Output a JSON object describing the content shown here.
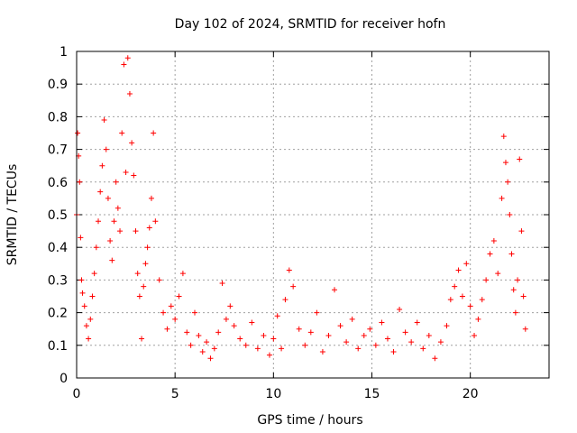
{
  "chart_data": {
    "type": "scatter",
    "title": "Day 102 of 2024, SRMTID for receiver hofn",
    "xlabel": "GPS time / hours",
    "ylabel": "SRMTID / TECUs",
    "xlim": [
      0,
      24
    ],
    "ylim": [
      0,
      1
    ],
    "xticks": [
      0,
      5,
      10,
      15,
      20
    ],
    "xtick_labels": [
      "0",
      "5",
      "10",
      "15",
      "20"
    ],
    "yticks": [
      0,
      0.1,
      0.2,
      0.3,
      0.4,
      0.5,
      0.6,
      0.7,
      0.8,
      0.9,
      1
    ],
    "ytick_labels": [
      "0",
      "0.1",
      "0.2",
      "0.3",
      "0.4",
      "0.5",
      "0.6",
      "0.7",
      "0.8",
      "0.9",
      "1"
    ],
    "grid": true,
    "marker": "+",
    "color": "#ff0000",
    "series": [
      {
        "name": "SRMTID",
        "points": [
          [
            0.0,
            0.5
          ],
          [
            0.05,
            0.75
          ],
          [
            0.1,
            0.68
          ],
          [
            0.15,
            0.6
          ],
          [
            0.2,
            0.43
          ],
          [
            0.25,
            0.3
          ],
          [
            0.3,
            0.26
          ],
          [
            0.4,
            0.22
          ],
          [
            0.5,
            0.16
          ],
          [
            0.6,
            0.12
          ],
          [
            0.7,
            0.18
          ],
          [
            0.8,
            0.25
          ],
          [
            0.9,
            0.32
          ],
          [
            1.0,
            0.4
          ],
          [
            1.1,
            0.48
          ],
          [
            1.2,
            0.57
          ],
          [
            1.3,
            0.65
          ],
          [
            1.4,
            0.79
          ],
          [
            1.5,
            0.7
          ],
          [
            1.6,
            0.55
          ],
          [
            1.7,
            0.42
          ],
          [
            1.8,
            0.36
          ],
          [
            1.9,
            0.48
          ],
          [
            2.0,
            0.6
          ],
          [
            2.1,
            0.52
          ],
          [
            2.2,
            0.45
          ],
          [
            2.3,
            0.75
          ],
          [
            2.4,
            0.96
          ],
          [
            2.5,
            0.63
          ],
          [
            2.6,
            0.98
          ],
          [
            2.7,
            0.87
          ],
          [
            2.8,
            0.72
          ],
          [
            2.9,
            0.62
          ],
          [
            3.0,
            0.45
          ],
          [
            3.1,
            0.32
          ],
          [
            3.2,
            0.25
          ],
          [
            3.3,
            0.12
          ],
          [
            3.4,
            0.28
          ],
          [
            3.5,
            0.35
          ],
          [
            3.6,
            0.4
          ],
          [
            3.7,
            0.46
          ],
          [
            3.8,
            0.55
          ],
          [
            3.9,
            0.75
          ],
          [
            4.0,
            0.48
          ],
          [
            4.2,
            0.3
          ],
          [
            4.4,
            0.2
          ],
          [
            4.6,
            0.15
          ],
          [
            4.8,
            0.22
          ],
          [
            5.0,
            0.18
          ],
          [
            5.2,
            0.25
          ],
          [
            5.4,
            0.32
          ],
          [
            5.6,
            0.14
          ],
          [
            5.8,
            0.1
          ],
          [
            6.0,
            0.2
          ],
          [
            6.2,
            0.13
          ],
          [
            6.4,
            0.08
          ],
          [
            6.6,
            0.11
          ],
          [
            6.8,
            0.06
          ],
          [
            7.0,
            0.09
          ],
          [
            7.2,
            0.14
          ],
          [
            7.4,
            0.29
          ],
          [
            7.6,
            0.18
          ],
          [
            7.8,
            0.22
          ],
          [
            8.0,
            0.16
          ],
          [
            8.3,
            0.12
          ],
          [
            8.6,
            0.1
          ],
          [
            8.9,
            0.17
          ],
          [
            9.2,
            0.09
          ],
          [
            9.5,
            0.13
          ],
          [
            9.8,
            0.07
          ],
          [
            10.0,
            0.12
          ],
          [
            10.2,
            0.19
          ],
          [
            10.4,
            0.09
          ],
          [
            10.6,
            0.24
          ],
          [
            10.8,
            0.33
          ],
          [
            11.0,
            0.28
          ],
          [
            11.3,
            0.15
          ],
          [
            11.6,
            0.1
          ],
          [
            11.9,
            0.14
          ],
          [
            12.2,
            0.2
          ],
          [
            12.5,
            0.08
          ],
          [
            12.8,
            0.13
          ],
          [
            13.1,
            0.27
          ],
          [
            13.4,
            0.16
          ],
          [
            13.7,
            0.11
          ],
          [
            14.0,
            0.18
          ],
          [
            14.3,
            0.09
          ],
          [
            14.6,
            0.13
          ],
          [
            14.9,
            0.15
          ],
          [
            15.2,
            0.1
          ],
          [
            15.5,
            0.17
          ],
          [
            15.8,
            0.12
          ],
          [
            16.1,
            0.08
          ],
          [
            16.4,
            0.21
          ],
          [
            16.7,
            0.14
          ],
          [
            17.0,
            0.11
          ],
          [
            17.3,
            0.17
          ],
          [
            17.6,
            0.09
          ],
          [
            17.9,
            0.13
          ],
          [
            18.2,
            0.06
          ],
          [
            18.5,
            0.11
          ],
          [
            18.8,
            0.16
          ],
          [
            19.0,
            0.24
          ],
          [
            19.2,
            0.28
          ],
          [
            19.4,
            0.33
          ],
          [
            19.6,
            0.25
          ],
          [
            19.8,
            0.35
          ],
          [
            20.0,
            0.22
          ],
          [
            20.2,
            0.13
          ],
          [
            20.4,
            0.18
          ],
          [
            20.6,
            0.24
          ],
          [
            20.8,
            0.3
          ],
          [
            21.0,
            0.38
          ],
          [
            21.2,
            0.42
          ],
          [
            21.4,
            0.32
          ],
          [
            21.6,
            0.55
          ],
          [
            21.7,
            0.74
          ],
          [
            21.8,
            0.66
          ],
          [
            21.9,
            0.6
          ],
          [
            22.0,
            0.5
          ],
          [
            22.1,
            0.38
          ],
          [
            22.2,
            0.27
          ],
          [
            22.3,
            0.2
          ],
          [
            22.4,
            0.3
          ],
          [
            22.5,
            0.67
          ],
          [
            22.6,
            0.45
          ],
          [
            22.7,
            0.25
          ],
          [
            22.8,
            0.15
          ]
        ]
      }
    ]
  }
}
